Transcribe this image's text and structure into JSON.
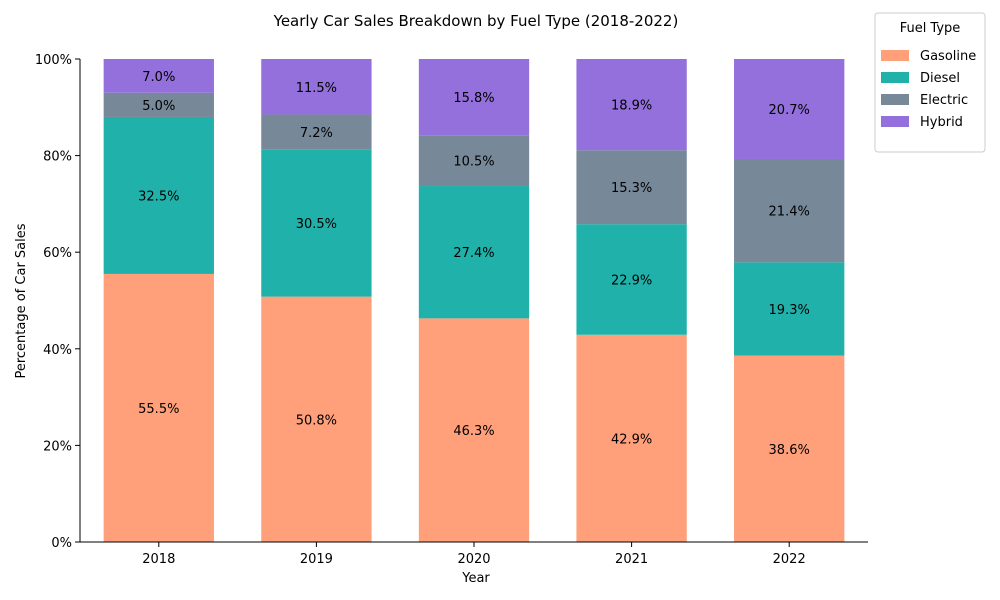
{
  "chart_data": {
    "type": "bar",
    "stacked": true,
    "title": "Yearly Car Sales Breakdown by Fuel Type (2018-2022)",
    "xlabel": "Year",
    "ylabel": "Percentage of Car Sales",
    "ylim": [
      0,
      100
    ],
    "yticks": [
      0,
      20,
      40,
      60,
      80,
      100
    ],
    "ytick_labels": [
      "0%",
      "20%",
      "40%",
      "60%",
      "80%",
      "100%"
    ],
    "categories": [
      "2018",
      "2019",
      "2020",
      "2021",
      "2022"
    ],
    "legend": {
      "title": "Fuel Type",
      "placement": "outside-top-right"
    },
    "grid": false,
    "series": [
      {
        "name": "Gasoline",
        "color": "#FFA07A",
        "values": [
          55.5,
          50.8,
          46.3,
          42.9,
          38.6
        ],
        "labels": [
          "55.5%",
          "50.8%",
          "46.3%",
          "42.9%",
          "38.6%"
        ]
      },
      {
        "name": "Diesel",
        "color": "#20B2AA",
        "values": [
          32.5,
          30.5,
          27.4,
          22.9,
          19.3
        ],
        "labels": [
          "32.5%",
          "30.5%",
          "27.4%",
          "22.9%",
          "19.3%"
        ]
      },
      {
        "name": "Electric",
        "color": "#778899",
        "values": [
          5.0,
          7.2,
          10.5,
          15.3,
          21.4
        ],
        "labels": [
          "5.0%",
          "7.2%",
          "10.5%",
          "15.3%",
          "21.4%"
        ]
      },
      {
        "name": "Hybrid",
        "color": "#9370DB",
        "values": [
          7.0,
          11.5,
          15.8,
          18.9,
          20.7
        ],
        "labels": [
          "7.0%",
          "11.5%",
          "15.8%",
          "18.9%",
          "20.7%"
        ]
      }
    ]
  }
}
